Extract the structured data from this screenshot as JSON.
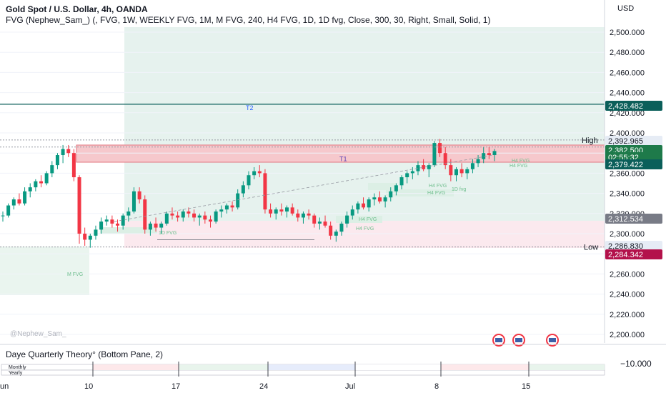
{
  "header": {
    "title": "Gold Spot / U.S. Dollar, 4h, OANDA",
    "indicator": "FVG (Nephew_Sam_) (, FVG, 1W, WEEKLY FVG, 1M, M FVG, 240, H4 FVG, 1D, 1D fvg, Close, 300, 30, Right, Small, Solid, 1)",
    "currency": "USD"
  },
  "watermark": "@Nephew_Sam_",
  "lower_pane": {
    "title": "Daye Quarterly Theory° (Bottom Pane, 2)",
    "rows": [
      "Monthly",
      "Yearly"
    ],
    "axis_label": "−10.000"
  },
  "chart_data": {
    "type": "candlestick",
    "y_ticks": [
      "2,500.000",
      "2,480.000",
      "2,460.000",
      "2,440.000",
      "2,420.000",
      "2,400.000",
      "2,380.000",
      "2,360.000",
      "2,340.000",
      "2,320.000",
      "2,300.000",
      "2,280.000",
      "2,260.000",
      "2,240.000",
      "2,220.000",
      "2,200.000"
    ],
    "y_tick_values": [
      2500,
      2480,
      2460,
      2440,
      2420,
      2400,
      2380,
      2360,
      2340,
      2320,
      2300,
      2280,
      2260,
      2240,
      2220,
      2200
    ],
    "ylim": [
      2192,
      2531
    ],
    "x_ticks": [
      "un",
      "10",
      "17",
      "24",
      "Jul",
      "8",
      "15"
    ],
    "price_labels": [
      {
        "text": "2,428.482",
        "value": 2428.482,
        "color": "#0b5f5a"
      },
      {
        "text": "2,392.965",
        "value": 2392.965,
        "color": "#e6ecf5",
        "textcolor": "#131722"
      },
      {
        "text": "2,382.500",
        "value": 2382.5,
        "color": "#1e7a4a"
      },
      {
        "text": "02:55:32",
        "value": 2381.0,
        "color": "#1e7a4a"
      },
      {
        "text": "2,379.422",
        "value": 2379.422,
        "color": "#0b5f5a"
      },
      {
        "text": "2,312.534",
        "value": 2312.534,
        "color": "#787b86"
      },
      {
        "text": "2,286.830",
        "value": 2286.83,
        "color": "#e6ecf5",
        "textcolor": "#131722"
      },
      {
        "text": "2,284.342",
        "value": 2284.342,
        "color": "#b3124b"
      }
    ],
    "level_labels": [
      {
        "text": "High",
        "value": 2393
      },
      {
        "text": "Low",
        "value": 2287
      }
    ],
    "targets": [
      {
        "text": "T2",
        "value": 2425.5
      },
      {
        "text": "T1",
        "value": 2375
      }
    ],
    "fvg_labels": [
      "M FVG",
      "1D FVG",
      "H4 FVG",
      "H4 FVG",
      "H4 FVG",
      "H4 FVG",
      "1D fvg",
      "H4 FVG",
      "H4 FVG"
    ],
    "candles": [
      [
        2318,
        2322,
        2312,
        2318
      ],
      [
        2318,
        2330,
        2316,
        2328
      ],
      [
        2328,
        2336,
        2324,
        2334
      ],
      [
        2334,
        2340,
        2328,
        2330
      ],
      [
        2330,
        2346,
        2328,
        2342
      ],
      [
        2342,
        2350,
        2336,
        2346
      ],
      [
        2346,
        2354,
        2342,
        2352
      ],
      [
        2352,
        2358,
        2346,
        2350
      ],
      [
        2350,
        2362,
        2348,
        2360
      ],
      [
        2360,
        2372,
        2356,
        2368
      ],
      [
        2368,
        2380,
        2364,
        2378
      ],
      [
        2378,
        2388,
        2370,
        2384
      ],
      [
        2384,
        2388,
        2376,
        2380
      ],
      [
        2380,
        2384,
        2352,
        2356
      ],
      [
        2356,
        2358,
        2290,
        2300
      ],
      [
        2300,
        2306,
        2288,
        2294
      ],
      [
        2294,
        2300,
        2286,
        2298
      ],
      [
        2298,
        2308,
        2294,
        2304
      ],
      [
        2304,
        2316,
        2300,
        2312
      ],
      [
        2312,
        2318,
        2308,
        2314
      ],
      [
        2314,
        2318,
        2306,
        2310
      ],
      [
        2310,
        2314,
        2302,
        2308
      ],
      [
        2308,
        2320,
        2304,
        2318
      ],
      [
        2318,
        2326,
        2312,
        2322
      ],
      [
        2322,
        2346,
        2320,
        2342
      ],
      [
        2342,
        2346,
        2330,
        2334
      ],
      [
        2334,
        2338,
        2300,
        2304
      ],
      [
        2304,
        2312,
        2298,
        2310
      ],
      [
        2310,
        2316,
        2302,
        2306
      ],
      [
        2306,
        2312,
        2300,
        2310
      ],
      [
        2310,
        2322,
        2308,
        2320
      ],
      [
        2320,
        2326,
        2314,
        2318
      ],
      [
        2318,
        2322,
        2312,
        2316
      ],
      [
        2316,
        2324,
        2312,
        2322
      ],
      [
        2322,
        2326,
        2316,
        2320
      ],
      [
        2320,
        2324,
        2312,
        2316
      ],
      [
        2316,
        2320,
        2308,
        2318
      ],
      [
        2318,
        2322,
        2310,
        2314
      ],
      [
        2314,
        2318,
        2306,
        2312
      ],
      [
        2312,
        2324,
        2310,
        2322
      ],
      [
        2322,
        2328,
        2316,
        2324
      ],
      [
        2324,
        2330,
        2320,
        2328
      ],
      [
        2328,
        2332,
        2322,
        2326
      ],
      [
        2326,
        2344,
        2324,
        2340
      ],
      [
        2340,
        2352,
        2336,
        2348
      ],
      [
        2348,
        2362,
        2344,
        2358
      ],
      [
        2358,
        2366,
        2354,
        2362
      ],
      [
        2362,
        2368,
        2356,
        2360
      ],
      [
        2360,
        2364,
        2320,
        2324
      ],
      [
        2324,
        2330,
        2316,
        2320
      ],
      [
        2320,
        2326,
        2314,
        2324
      ],
      [
        2324,
        2330,
        2318,
        2322
      ],
      [
        2322,
        2328,
        2316,
        2326
      ],
      [
        2326,
        2330,
        2318,
        2320
      ],
      [
        2320,
        2324,
        2312,
        2316
      ],
      [
        2316,
        2322,
        2310,
        2320
      ],
      [
        2320,
        2324,
        2314,
        2318
      ],
      [
        2318,
        2320,
        2306,
        2310
      ],
      [
        2310,
        2316,
        2304,
        2312
      ],
      [
        2312,
        2318,
        2306,
        2308
      ],
      [
        2308,
        2312,
        2294,
        2298
      ],
      [
        2298,
        2304,
        2292,
        2302
      ],
      [
        2302,
        2312,
        2298,
        2310
      ],
      [
        2310,
        2322,
        2306,
        2318
      ],
      [
        2318,
        2328,
        2314,
        2324
      ],
      [
        2324,
        2332,
        2320,
        2330
      ],
      [
        2330,
        2336,
        2324,
        2326
      ],
      [
        2326,
        2336,
        2322,
        2334
      ],
      [
        2334,
        2340,
        2328,
        2336
      ],
      [
        2336,
        2342,
        2330,
        2332
      ],
      [
        2332,
        2338,
        2326,
        2336
      ],
      [
        2336,
        2346,
        2332,
        2342
      ],
      [
        2342,
        2350,
        2338,
        2348
      ],
      [
        2348,
        2358,
        2344,
        2356
      ],
      [
        2356,
        2362,
        2350,
        2360
      ],
      [
        2360,
        2366,
        2354,
        2362
      ],
      [
        2362,
        2372,
        2358,
        2368
      ],
      [
        2368,
        2374,
        2362,
        2364
      ],
      [
        2364,
        2370,
        2356,
        2368
      ],
      [
        2368,
        2392,
        2366,
        2390
      ],
      [
        2390,
        2394,
        2376,
        2380
      ],
      [
        2380,
        2386,
        2364,
        2368
      ],
      [
        2368,
        2374,
        2352,
        2358
      ],
      [
        2358,
        2366,
        2352,
        2364
      ],
      [
        2364,
        2370,
        2356,
        2360
      ],
      [
        2360,
        2366,
        2354,
        2364
      ],
      [
        2364,
        2374,
        2360,
        2370
      ],
      [
        2370,
        2378,
        2366,
        2374
      ],
      [
        2374,
        2386,
        2370,
        2380
      ],
      [
        2380,
        2386,
        2374,
        2378
      ],
      [
        2378,
        2384,
        2372,
        2382
      ]
    ]
  },
  "colors": {
    "up": "#089981",
    "down": "#f23645",
    "green_zone": "#e6f2ee",
    "red_zone": "#fbe9ee",
    "fvg_band": "#f6c8cc",
    "t2_line": "#0b5f5a"
  }
}
